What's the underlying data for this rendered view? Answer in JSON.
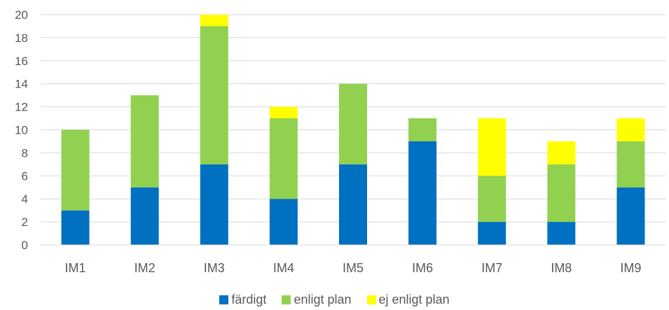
{
  "chart_data": {
    "type": "bar",
    "stacked": true,
    "categories": [
      "IM1",
      "IM2",
      "IM3",
      "IM4",
      "IM5",
      "IM6",
      "IM7",
      "IM8",
      "IM9"
    ],
    "series": [
      {
        "name": "färdigt",
        "color": "#0070C0",
        "values": [
          3,
          5,
          7,
          4,
          7,
          9,
          2,
          2,
          5
        ]
      },
      {
        "name": "enligt plan",
        "color": "#92D050",
        "values": [
          7,
          8,
          12,
          7,
          7,
          2,
          4,
          5,
          4
        ]
      },
      {
        "name": "ej enligt plan",
        "color": "#FFFF00",
        "values": [
          0,
          0,
          1,
          1,
          0,
          0,
          5,
          2,
          2
        ]
      }
    ],
    "ylim": [
      0,
      20
    ],
    "yticks": [
      "0",
      "2",
      "4",
      "6",
      "8",
      "10",
      "12",
      "14",
      "16",
      "18",
      "20"
    ],
    "grid": true,
    "legend_position": "bottom"
  }
}
